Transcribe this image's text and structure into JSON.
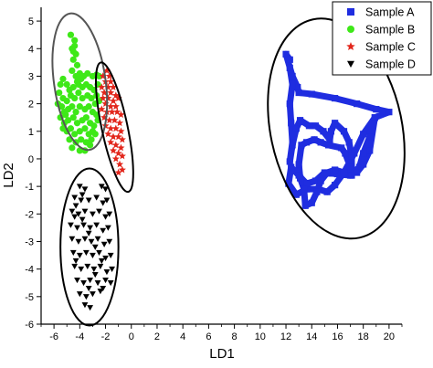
{
  "chart_data": {
    "type": "scatter",
    "title": "",
    "xlabel": "LD1",
    "ylabel": "LD2",
    "xlim": [
      -7,
      21
    ],
    "ylim": [
      -6,
      5.5
    ],
    "xticks": [
      -6,
      -4,
      -2,
      0,
      2,
      4,
      6,
      8,
      10,
      12,
      14,
      16,
      18,
      20
    ],
    "yticks": [
      -6,
      -5,
      -4,
      -3,
      -2,
      -1,
      0,
      1,
      2,
      3,
      4,
      5
    ],
    "legend": {
      "placement": "top-right"
    },
    "grid": false,
    "series": [
      {
        "name": "Sample A",
        "marker": "square",
        "color": "#1f2de0",
        "paths": [
          [
            [
              12.3,
              3.6
            ],
            [
              12.0,
              3.8
            ],
            [
              12.5,
              3.0
            ],
            [
              12.9,
              2.6
            ],
            [
              13.0,
              2.4
            ],
            [
              14.0,
              2.35
            ],
            [
              15.8,
              2.2
            ],
            [
              17.5,
              2.0
            ],
            [
              19.0,
              1.8
            ],
            [
              20.0,
              1.7
            ],
            [
              18.9,
              1.5
            ],
            [
              18.0,
              0.9
            ],
            [
              17.3,
              0.2
            ],
            [
              16.5,
              -0.5
            ],
            [
              15.8,
              -0.95
            ],
            [
              15.2,
              -1.2
            ],
            [
              14.5,
              -1.1
            ],
            [
              13.6,
              -1.1
            ],
            [
              12.8,
              -1.3
            ],
            [
              12.2,
              -0.9
            ],
            [
              12.4,
              -0.3
            ],
            [
              13.0,
              -0.6
            ],
            [
              13.6,
              -0.9
            ],
            [
              14.3,
              -0.8
            ],
            [
              15.0,
              -0.5
            ],
            [
              16.0,
              -0.55
            ],
            [
              17.0,
              -0.6
            ],
            [
              17.7,
              -0.3
            ],
            [
              18.0,
              0.2
            ],
            [
              18.5,
              0.8
            ],
            [
              18.9,
              1.5
            ],
            [
              18.5,
              0.3
            ],
            [
              18.0,
              -0.2
            ],
            [
              17.5,
              -0.5
            ],
            [
              17.0,
              -0.3
            ],
            [
              16.6,
              0.2
            ],
            [
              16.3,
              0.4
            ],
            [
              15.3,
              0.5
            ],
            [
              14.7,
              0.6
            ],
            [
              14.2,
              0.7
            ],
            [
              13.6,
              0.6
            ],
            [
              13.2,
              0.5
            ],
            [
              13.0,
              -0.2
            ],
            [
              13.1,
              -0.7
            ],
            [
              13.4,
              -1.1
            ],
            [
              13.5,
              -1.7
            ],
            [
              14.0,
              -1.6
            ],
            [
              14.4,
              -1.2
            ],
            [
              14.7,
              -0.8
            ],
            [
              15.2,
              -0.5
            ],
            [
              15.8,
              -0.4
            ],
            [
              16.5,
              -0.5
            ],
            [
              17.1,
              -0.6
            ],
            [
              17.1,
              0.1
            ],
            [
              16.9,
              0.6
            ],
            [
              16.5,
              1.0
            ],
            [
              15.8,
              1.3
            ],
            [
              15.5,
              1.0
            ],
            [
              15.4,
              0.7
            ],
            [
              14.9,
              1.0
            ],
            [
              14.3,
              1.2
            ],
            [
              13.8,
              1.2
            ],
            [
              13.1,
              1.4
            ],
            [
              12.8,
              1.1
            ],
            [
              12.5,
              0.5
            ],
            [
              12.3,
              -0.1
            ],
            [
              12.5,
              0.6
            ],
            [
              12.4,
              1.3
            ],
            [
              12.3,
              2.0
            ],
            [
              12.5,
              2.7
            ],
            [
              12.3,
              3.3
            ]
          ]
        ],
        "points": []
      },
      {
        "name": "Sample B",
        "marker": "circle",
        "color": "#3ee818",
        "paths": [],
        "points": [
          [
            -4.7,
            4.5
          ],
          [
            -4.4,
            4.3
          ],
          [
            -4.6,
            4.0
          ],
          [
            -4.3,
            3.8
          ],
          [
            -4.5,
            3.6
          ],
          [
            -4.2,
            3.4
          ],
          [
            -4.6,
            3.2
          ],
          [
            -4.0,
            3.1
          ],
          [
            -3.7,
            3.0
          ],
          [
            -3.4,
            3.1
          ],
          [
            -3.0,
            3.0
          ],
          [
            -2.7,
            3.05
          ],
          [
            -2.5,
            3.0
          ],
          [
            -5.3,
            2.9
          ],
          [
            -5.5,
            2.7
          ],
          [
            -5.0,
            2.7
          ],
          [
            -4.8,
            2.5
          ],
          [
            -4.5,
            2.6
          ],
          [
            -4.1,
            2.7
          ],
          [
            -3.8,
            2.6
          ],
          [
            -3.5,
            2.7
          ],
          [
            -3.2,
            2.6
          ],
          [
            -2.9,
            2.5
          ],
          [
            -2.7,
            2.3
          ],
          [
            -5.6,
            2.4
          ],
          [
            -5.3,
            2.2
          ],
          [
            -5.0,
            2.1
          ],
          [
            -4.7,
            2.3
          ],
          [
            -4.4,
            2.2
          ],
          [
            -4.1,
            2.4
          ],
          [
            -3.8,
            2.2
          ],
          [
            -3.4,
            2.3
          ],
          [
            -3.1,
            2.2
          ],
          [
            -2.8,
            2.0
          ],
          [
            -5.7,
            2.0
          ],
          [
            -5.4,
            1.9
          ],
          [
            -5.2,
            1.7
          ],
          [
            -4.9,
            1.8
          ],
          [
            -4.6,
            1.9
          ],
          [
            -4.3,
            1.7
          ],
          [
            -4.0,
            1.9
          ],
          [
            -3.6,
            1.8
          ],
          [
            -3.3,
            1.9
          ],
          [
            -3.0,
            1.7
          ],
          [
            -2.7,
            1.6
          ],
          [
            -5.5,
            1.5
          ],
          [
            -5.2,
            1.3
          ],
          [
            -4.9,
            1.4
          ],
          [
            -4.5,
            1.5
          ],
          [
            -4.2,
            1.3
          ],
          [
            -3.8,
            1.4
          ],
          [
            -3.5,
            1.5
          ],
          [
            -3.2,
            1.3
          ],
          [
            -2.9,
            1.2
          ],
          [
            -2.6,
            1.4
          ],
          [
            -5.3,
            1.1
          ],
          [
            -5.0,
            1.0
          ],
          [
            -4.7,
            1.1
          ],
          [
            -4.4,
            0.9
          ],
          [
            -4.0,
            1.0
          ],
          [
            -3.6,
            1.1
          ],
          [
            -3.3,
            0.9
          ],
          [
            -3.0,
            1.0
          ],
          [
            -4.8,
            0.7
          ],
          [
            -4.3,
            0.6
          ],
          [
            -3.9,
            0.7
          ],
          [
            -3.5,
            0.6
          ],
          [
            -3.1,
            0.7
          ],
          [
            -4.6,
            0.4
          ],
          [
            -4.0,
            0.3
          ],
          [
            -3.6,
            0.3
          ],
          [
            -4.4,
            4.1
          ],
          [
            -4.5,
            3.9
          ],
          [
            -4.3,
            3.0
          ],
          [
            -4.2,
            2.8
          ],
          [
            -3.9,
            2.9
          ],
          [
            -5.1,
            1.6
          ],
          [
            -2.6,
            2.7
          ],
          [
            -2.5,
            2.1
          ],
          [
            -2.8,
            0.9
          ],
          [
            -3.2,
            0.5
          ]
        ]
      },
      {
        "name": "Sample C",
        "marker": "star",
        "color": "#e2261b",
        "paths": [],
        "points": [
          [
            -1.9,
            3.2
          ],
          [
            -2.2,
            3.0
          ],
          [
            -1.7,
            3.0
          ],
          [
            -2.0,
            2.8
          ],
          [
            -1.6,
            2.8
          ],
          [
            -2.3,
            2.6
          ],
          [
            -1.8,
            2.6
          ],
          [
            -1.4,
            2.6
          ],
          [
            -2.1,
            2.4
          ],
          [
            -1.6,
            2.4
          ],
          [
            -1.2,
            2.3
          ],
          [
            -2.2,
            2.2
          ],
          [
            -1.8,
            2.2
          ],
          [
            -1.4,
            2.1
          ],
          [
            -1.0,
            2.2
          ],
          [
            -2.0,
            2.0
          ],
          [
            -1.6,
            1.9
          ],
          [
            -1.2,
            1.9
          ],
          [
            -2.3,
            1.8
          ],
          [
            -1.9,
            1.7
          ],
          [
            -1.5,
            1.7
          ],
          [
            -1.1,
            1.7
          ],
          [
            -0.8,
            1.6
          ],
          [
            -2.1,
            1.5
          ],
          [
            -1.7,
            1.4
          ],
          [
            -1.3,
            1.4
          ],
          [
            -0.9,
            1.3
          ],
          [
            -2.0,
            1.2
          ],
          [
            -1.6,
            1.1
          ],
          [
            -1.2,
            1.1
          ],
          [
            -0.8,
            1.0
          ],
          [
            -1.8,
            0.9
          ],
          [
            -1.4,
            0.8
          ],
          [
            -1.0,
            0.8
          ],
          [
            -0.7,
            0.7
          ],
          [
            -1.6,
            0.6
          ],
          [
            -1.2,
            0.5
          ],
          [
            -0.8,
            0.4
          ],
          [
            -1.4,
            0.3
          ],
          [
            -1.0,
            0.2
          ],
          [
            -0.7,
            0.1
          ],
          [
            -1.2,
            0.0
          ],
          [
            -0.9,
            -0.2
          ],
          [
            -0.7,
            -0.4
          ],
          [
            -1.0,
            -0.5
          ]
        ]
      },
      {
        "name": "Sample D",
        "marker": "triangle-down",
        "color": "#000000",
        "paths": [],
        "points": [
          [
            -4.0,
            -1.0
          ],
          [
            -3.6,
            -1.1
          ],
          [
            -2.3,
            -1.0
          ],
          [
            -2.0,
            -1.1
          ],
          [
            -4.4,
            -1.4
          ],
          [
            -3.9,
            -1.5
          ],
          [
            -3.3,
            -1.5
          ],
          [
            -2.7,
            -1.4
          ],
          [
            -2.2,
            -1.6
          ],
          [
            -1.9,
            -1.5
          ],
          [
            -4.6,
            -1.9
          ],
          [
            -4.1,
            -2.0
          ],
          [
            -3.6,
            -1.9
          ],
          [
            -3.0,
            -2.0
          ],
          [
            -2.5,
            -1.9
          ],
          [
            -2.0,
            -2.1
          ],
          [
            -1.7,
            -2.0
          ],
          [
            -4.7,
            -2.4
          ],
          [
            -4.2,
            -2.5
          ],
          [
            -3.7,
            -2.4
          ],
          [
            -3.2,
            -2.5
          ],
          [
            -2.7,
            -2.4
          ],
          [
            -2.2,
            -2.6
          ],
          [
            -1.8,
            -2.5
          ],
          [
            -4.6,
            -2.9
          ],
          [
            -4.1,
            -3.0
          ],
          [
            -3.6,
            -2.9
          ],
          [
            -3.1,
            -3.0
          ],
          [
            -2.6,
            -2.9
          ],
          [
            -2.1,
            -3.1
          ],
          [
            -1.7,
            -3.0
          ],
          [
            -4.5,
            -3.4
          ],
          [
            -4.0,
            -3.5
          ],
          [
            -3.5,
            -3.4
          ],
          [
            -3.0,
            -3.5
          ],
          [
            -2.5,
            -3.4
          ],
          [
            -2.0,
            -3.6
          ],
          [
            -1.6,
            -3.5
          ],
          [
            -4.4,
            -3.9
          ],
          [
            -3.9,
            -4.0
          ],
          [
            -3.4,
            -3.9
          ],
          [
            -2.9,
            -4.0
          ],
          [
            -2.4,
            -3.9
          ],
          [
            -1.9,
            -4.1
          ],
          [
            -1.5,
            -4.0
          ],
          [
            -4.2,
            -4.4
          ],
          [
            -3.7,
            -4.5
          ],
          [
            -3.2,
            -4.4
          ],
          [
            -2.6,
            -4.5
          ],
          [
            -2.0,
            -4.4
          ],
          [
            -1.6,
            -4.5
          ],
          [
            -4.0,
            -4.9
          ],
          [
            -3.5,
            -5.0
          ],
          [
            -3.0,
            -4.9
          ],
          [
            -2.4,
            -4.8
          ],
          [
            -3.6,
            -5.3
          ],
          [
            -3.2,
            -5.4
          ],
          [
            -4.3,
            -1.7
          ],
          [
            -3.8,
            -2.2
          ],
          [
            -3.3,
            -2.7
          ],
          [
            -2.8,
            -3.2
          ],
          [
            -2.3,
            -3.7
          ],
          [
            -2.8,
            -4.2
          ],
          [
            -3.3,
            -4.7
          ],
          [
            -2.2,
            -4.7
          ],
          [
            -3.8,
            -1.3
          ],
          [
            -4.4,
            -2.1
          ],
          [
            -4.3,
            -3.7
          ]
        ]
      }
    ],
    "ellipses": [
      {
        "group": "Sample B",
        "cx": -4.0,
        "cy": 2.8,
        "rx": 2.0,
        "ry": 2.5,
        "rotate_deg": -8
      },
      {
        "group": "Sample C",
        "cx": -1.3,
        "cy": 1.15,
        "rx": 1.0,
        "ry": 2.4,
        "rotate_deg": -12
      },
      {
        "group": "Sample D",
        "cx": -3.25,
        "cy": -3.2,
        "rx": 2.25,
        "ry": 2.85,
        "rotate_deg": 0
      },
      {
        "group": "Sample A",
        "cx": 15.9,
        "cy": 1.1,
        "rx": 5.1,
        "ry": 4.05,
        "rotate_deg": -12
      }
    ]
  }
}
